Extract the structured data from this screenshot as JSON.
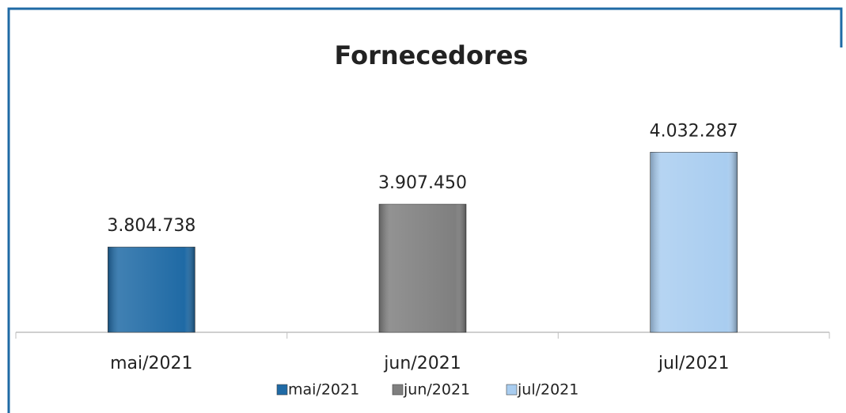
{
  "chart_data": {
    "type": "bar",
    "title": "Fornecedores",
    "categories": [
      "mai/2021",
      "jun/2021",
      "jul/2021"
    ],
    "values": [
      3804738,
      3907450,
      4032287
    ],
    "value_labels": [
      "3.804.738",
      "3.907.450",
      "4.032.287"
    ],
    "colors": [
      "#1f6aa5",
      "#7f7f7f",
      "#a9cdf0"
    ],
    "ylim": [
      3600000,
      4200000
    ],
    "legend": "bottom"
  }
}
